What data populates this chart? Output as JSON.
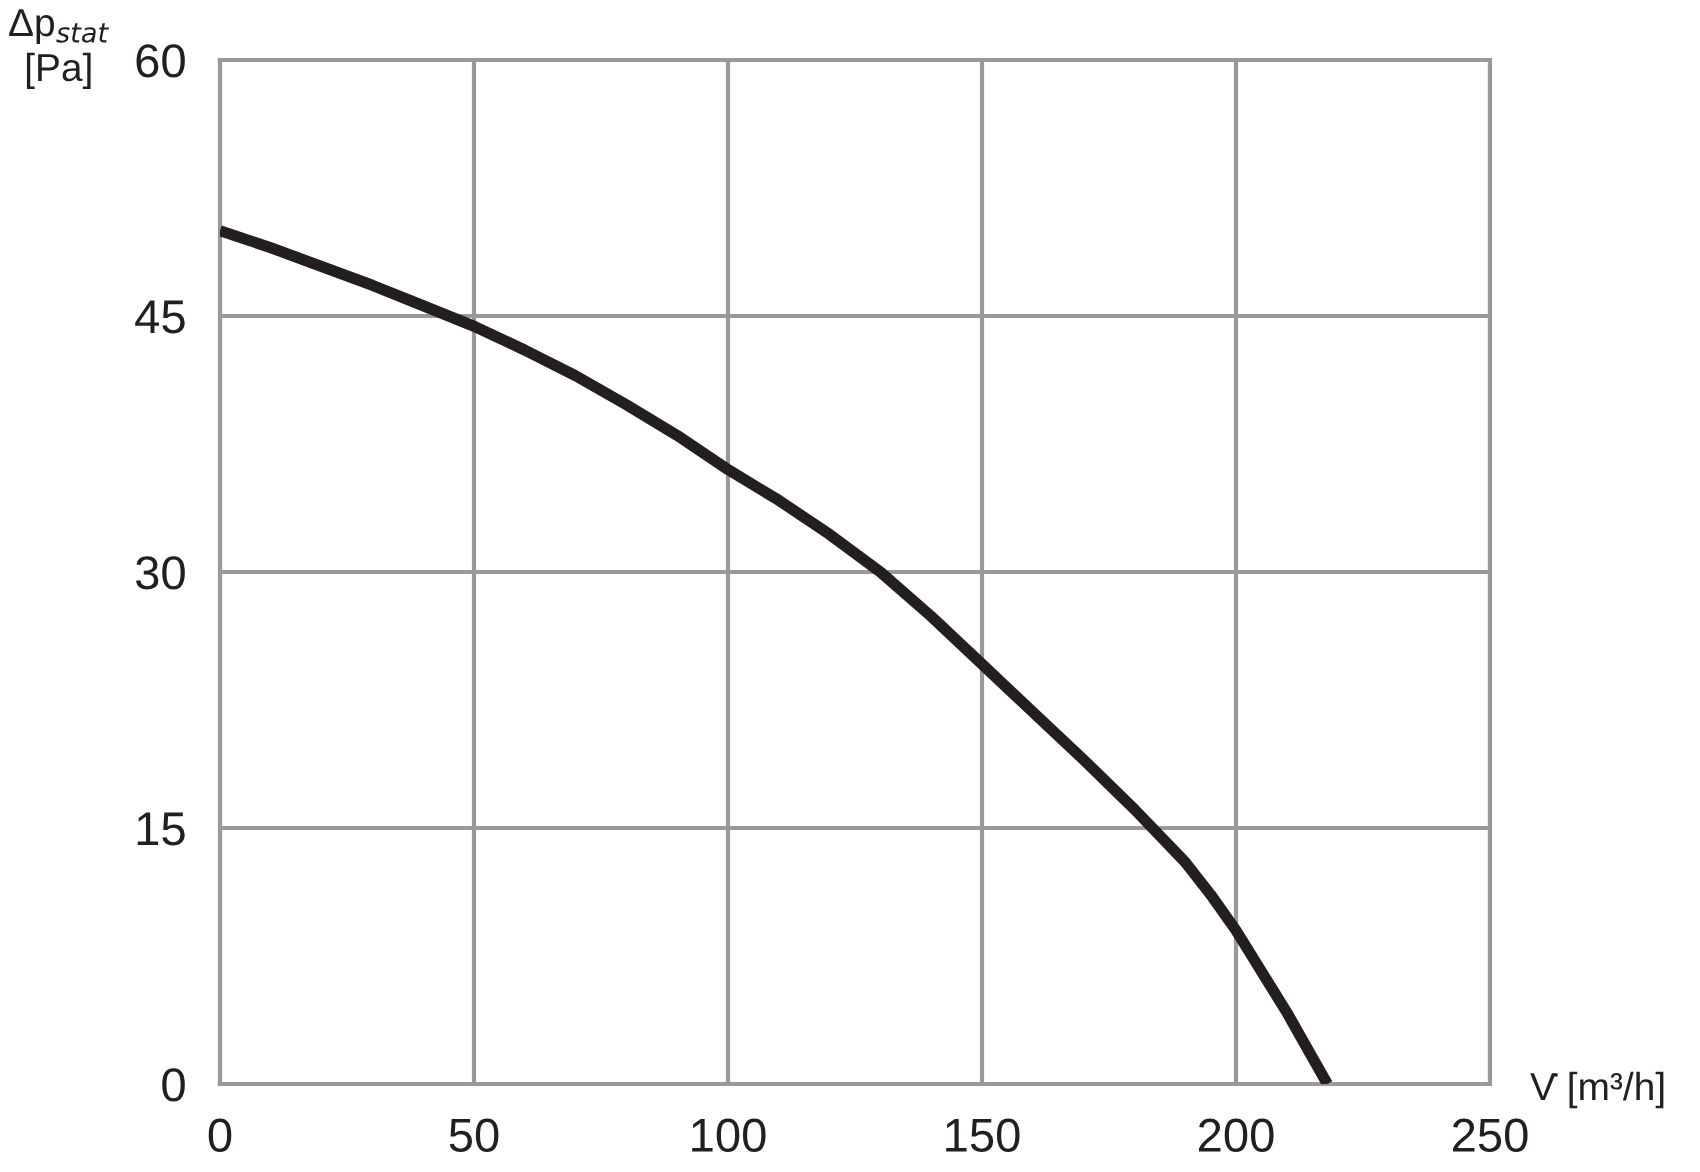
{
  "chart_data": {
    "type": "line",
    "xlabel": "V̇ [m³/h]",
    "ylabel": "Δp$_{stat}$\n[Pa]",
    "x": [
      0,
      10,
      20,
      30,
      40,
      50,
      60,
      70,
      80,
      90,
      100,
      110,
      120,
      130,
      140,
      150,
      160,
      170,
      180,
      190,
      195,
      200,
      205,
      210,
      214,
      218
    ],
    "series": [
      {
        "color": "#231f20",
        "values": [
          50,
          49,
          47.9,
          46.8,
          45.6,
          44.4,
          43,
          41.5,
          39.8,
          38,
          36,
          34.2,
          32.2,
          30,
          27.4,
          24.6,
          21.8,
          19,
          16.1,
          13,
          11.1,
          9,
          6.6,
          4.2,
          2.1,
          0
        ]
      }
    ],
    "xlim": [
      0,
      250
    ],
    "xticks": [
      0,
      50,
      100,
      150,
      200,
      250
    ],
    "ylim": [
      0,
      60
    ],
    "yticks": [
      0,
      15,
      30,
      45,
      60
    ],
    "grid": true,
    "marker": "none",
    "line_style": "solid",
    "legend": false
  }
}
